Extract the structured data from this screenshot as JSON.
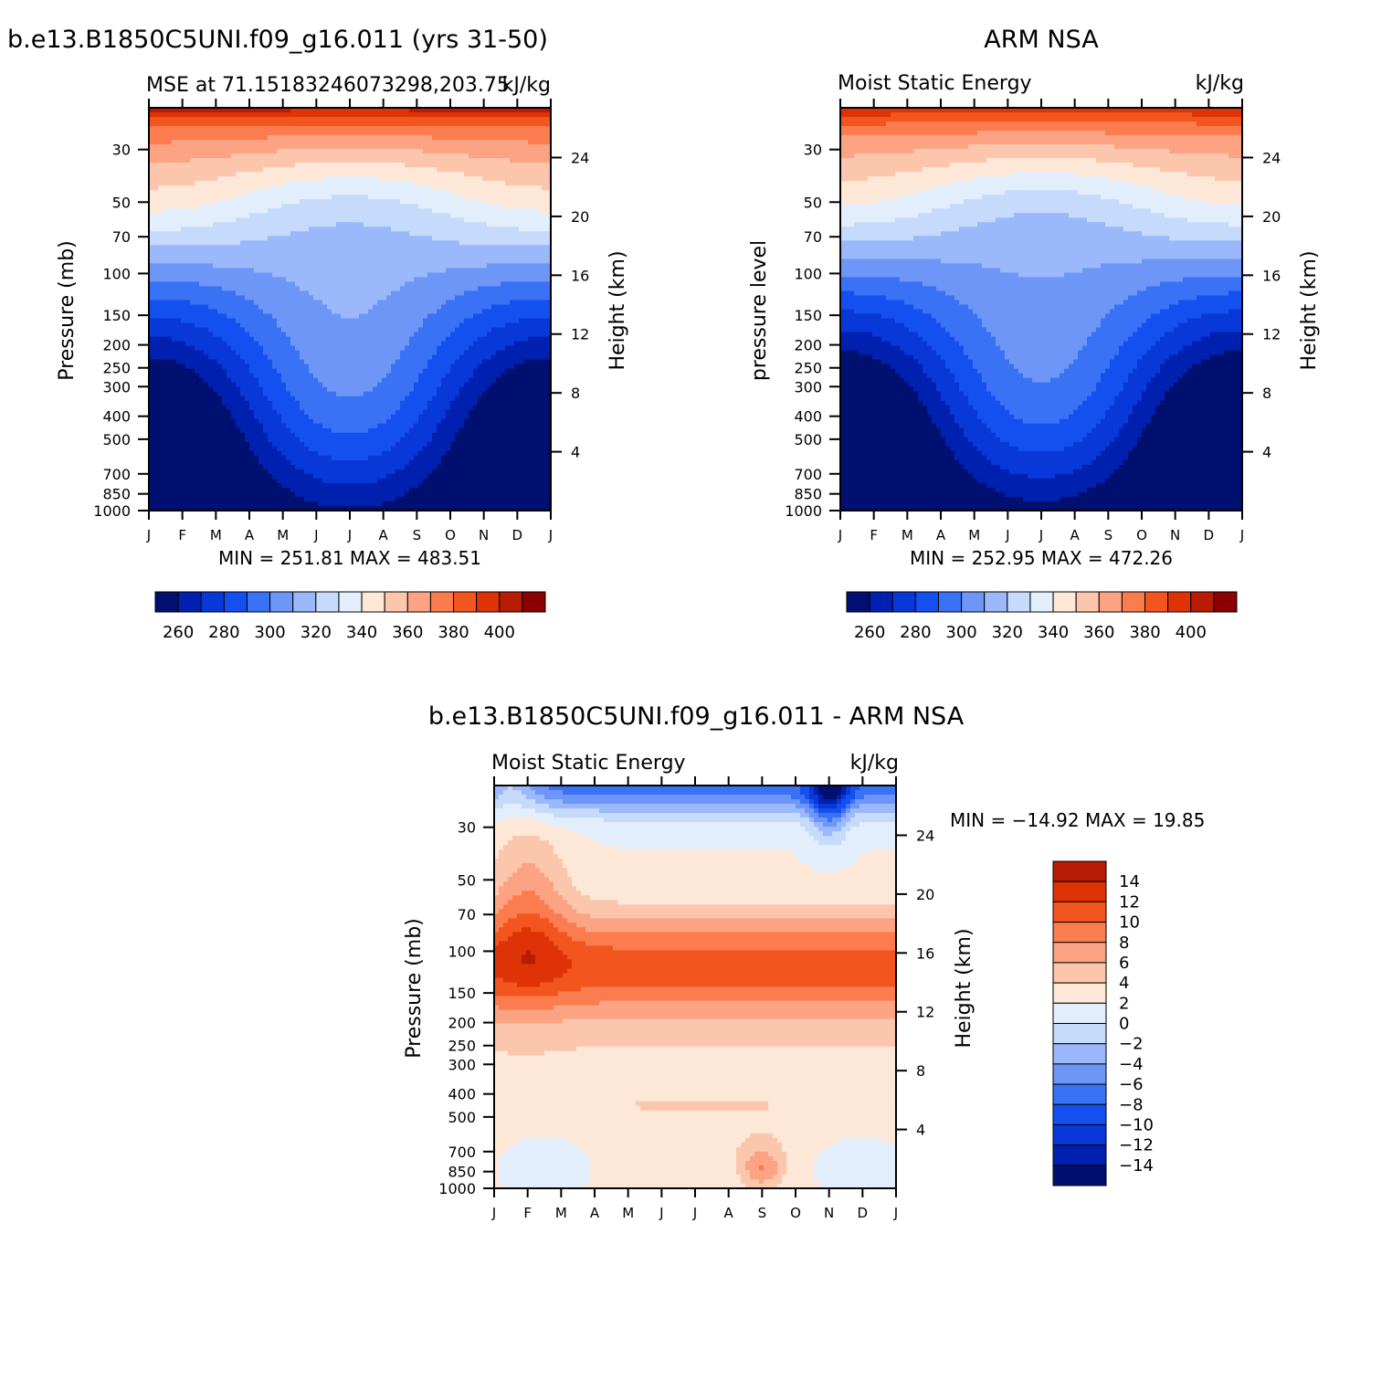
{
  "chart_data": [
    {
      "type": "heatmap",
      "title": "b.e13.B1850C5UNI.f09_g16.011 (yrs 31-50)",
      "subtitle_left": "MSE at 71.15183246073298,203.75",
      "subtitle_right": "kJ/kg",
      "ylabel": "Pressure (mb)",
      "ylabel_right": "Height (km)",
      "x_ticks": [
        "J",
        "F",
        "M",
        "A",
        "M",
        "J",
        "J",
        "A",
        "S",
        "O",
        "N",
        "D",
        "J"
      ],
      "y_ticks": [
        "30",
        "50",
        "70",
        "100",
        "150",
        "200",
        "250",
        "300",
        "400",
        "500",
        "700",
        "850",
        "1000"
      ],
      "y_ticks_right": [
        "24",
        "20",
        "16",
        "12",
        "8",
        "4"
      ],
      "stats": "MIN = 251.81  MAX = 483.51",
      "colorbar_labels": [
        "260",
        "280",
        "300",
        "320",
        "340",
        "360",
        "380",
        "400"
      ],
      "levels": [
        250,
        260,
        270,
        280,
        290,
        300,
        310,
        320,
        330,
        340,
        350,
        360,
        370,
        380,
        390,
        400,
        410
      ],
      "monthly_bands_level_index": [
        11,
        11,
        10,
        9,
        8,
        7,
        7,
        8,
        9,
        10,
        11,
        11,
        11
      ],
      "description_values_kJkg": {
        "min": 251.81,
        "max": 483.51
      }
    },
    {
      "type": "heatmap",
      "title": "ARM NSA",
      "subtitle_left": "Moist Static Energy",
      "subtitle_right": "kJ/kg",
      "ylabel": "pressure level",
      "ylabel_right": "Height (km)",
      "x_ticks": [
        "J",
        "F",
        "M",
        "A",
        "M",
        "J",
        "J",
        "A",
        "S",
        "O",
        "N",
        "D",
        "J"
      ],
      "y_ticks": [
        "30",
        "50",
        "70",
        "100",
        "150",
        "200",
        "250",
        "300",
        "400",
        "500",
        "700",
        "850",
        "1000"
      ],
      "y_ticks_right": [
        "24",
        "20",
        "16",
        "12",
        "8",
        "4"
      ],
      "stats": "MIN = 252.95  MAX = 472.26",
      "colorbar_labels": [
        "260",
        "280",
        "300",
        "320",
        "340",
        "360",
        "380",
        "400"
      ],
      "levels": [
        250,
        260,
        270,
        280,
        290,
        300,
        310,
        320,
        330,
        340,
        350,
        360,
        370,
        380,
        390,
        400,
        410
      ],
      "description_values_kJkg": {
        "min": 252.95,
        "max": 472.26
      }
    },
    {
      "type": "heatmap",
      "title": "b.e13.B1850C5UNI.f09_g16.011 - ARM NSA",
      "subtitle_left": "Moist Static Energy",
      "subtitle_right": "kJ/kg",
      "ylabel": "Pressure (mb)",
      "ylabel_right": "Height (km)",
      "x_ticks": [
        "J",
        "F",
        "M",
        "A",
        "M",
        "J",
        "J",
        "A",
        "S",
        "O",
        "N",
        "D",
        "J"
      ],
      "y_ticks": [
        "30",
        "50",
        "70",
        "100",
        "150",
        "200",
        "250",
        "300",
        "400",
        "500",
        "700",
        "850",
        "1000"
      ],
      "y_ticks_right": [
        "24",
        "20",
        "16",
        "12",
        "8",
        "4"
      ],
      "stats": "MIN = −14.92  MAX =   19.85",
      "colorbar_labels": [
        "14",
        "12",
        "10",
        "8",
        "6",
        "4",
        "2",
        "0",
        "−2",
        "−4",
        "−6",
        "−8",
        "−10",
        "−12",
        "−14"
      ],
      "levels": [
        -16,
        -14,
        -12,
        -10,
        -8,
        -6,
        -4,
        -2,
        0,
        2,
        4,
        6,
        8,
        10,
        12,
        14,
        16
      ],
      "description_values_kJkg": {
        "min": -14.92,
        "max": 19.85
      }
    }
  ],
  "colors": {
    "mse_palette": [
      "#001070",
      "#0020b0",
      "#0838d8",
      "#1450f0",
      "#3a72f5",
      "#6d96f7",
      "#9ab8fa",
      "#c6dafc",
      "#e2eefc",
      "#fde7d6",
      "#fcc6ad",
      "#fba382",
      "#fb7c4e",
      "#f3551f",
      "#dd3306",
      "#b81c04",
      "#8b0000"
    ],
    "diff_palette": [
      "#8b0000",
      "#b81c04",
      "#dd3306",
      "#f3551f",
      "#fb7c4e",
      "#fba382",
      "#fcc6ad",
      "#fde7d6",
      "#e2eefc",
      "#c6dafc",
      "#9ab8fa",
      "#6d96f7",
      "#3a72f5",
      "#1450f0",
      "#0838d8",
      "#0020b0",
      "#001070"
    ]
  }
}
